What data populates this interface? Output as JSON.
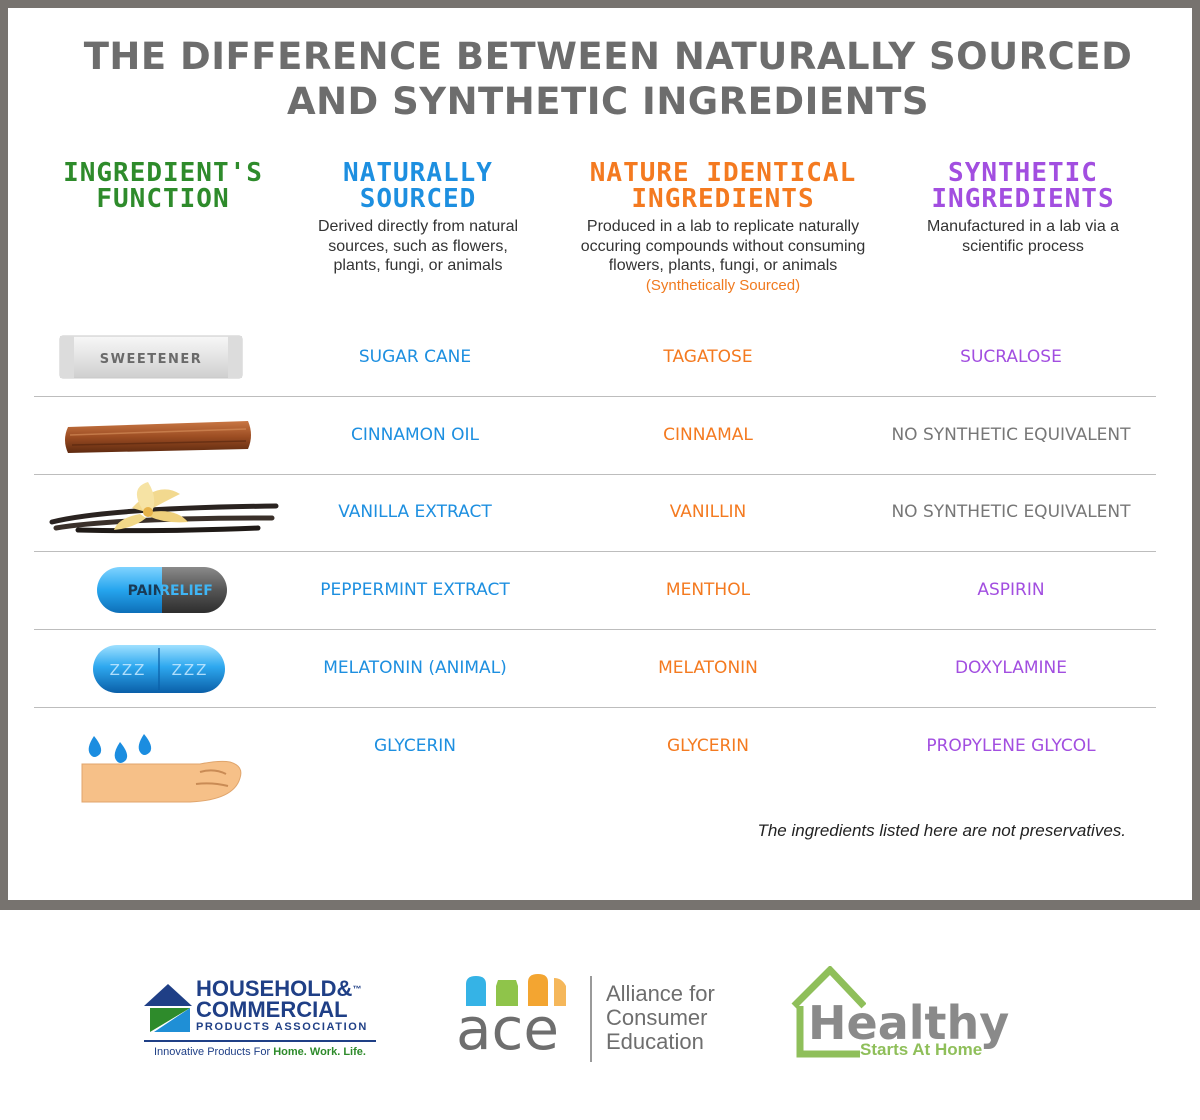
{
  "title": {
    "line1": "THE DIFFERENCE BETWEEN NATURALLY SOURCED",
    "line2": "AND SYNTHETIC INGREDIENTS"
  },
  "columns": {
    "function": {
      "line1": "INGREDIENT'S",
      "line2": "FUNCTION"
    },
    "natural": {
      "line1": "NATURALLY",
      "line2": "SOURCED",
      "desc": [
        "Derived directly from natural",
        "sources, such as flowers,",
        "plants, fungi, or animals"
      ]
    },
    "identical": {
      "line1": "NATURE IDENTICAL",
      "line2": "INGREDIENTS",
      "desc": [
        "Produced in a lab to replicate naturally",
        "occuring compounds without consuming",
        "flowers, plants, fungi, or animals"
      ],
      "note": "(Synthetically Sourced)"
    },
    "synthetic": {
      "line1": "SYNTHETIC",
      "line2": "INGREDIENTS",
      "desc": [
        "Manufactured in a lab via a",
        "scientific process"
      ]
    }
  },
  "rows": [
    {
      "icon": "sweetener-packet-icon",
      "icon_label": "SWEETENER",
      "natural": "SUGAR CANE",
      "identical": "TAGATOSE",
      "synthetic": "SUCRALOSE"
    },
    {
      "icon": "cinnamon-stick-icon",
      "natural": "CINNAMON OIL",
      "identical": "CINNAMAL",
      "synthetic": "NO SYNTHETIC EQUIVALENT"
    },
    {
      "icon": "vanilla-flower-icon",
      "natural": "VANILLA EXTRACT",
      "identical": "VANILLIN",
      "synthetic": "NO SYNTHETIC EQUIVALENT"
    },
    {
      "icon": "pain-relief-pill-icon",
      "icon_label_a": "PAIN",
      "icon_label_b": "RELIEF",
      "natural": "PEPPERMINT EXTRACT",
      "identical": "MENTHOL",
      "synthetic": "ASPIRIN"
    },
    {
      "icon": "sleep-pill-icon",
      "icon_label_a": "ZZZ",
      "icon_label_b": "ZZZ",
      "natural": "MELATONIN (ANIMAL)",
      "identical": "MELATONIN",
      "synthetic": "DOXYLAMINE"
    },
    {
      "icon": "hand-water-drops-icon",
      "natural": "GLYCERIN",
      "identical": "GLYCERIN",
      "synthetic": "PROPYLENE GLYCOL"
    }
  ],
  "footnote": "The ingredients listed here are not preservatives.",
  "logos": {
    "hcpa": {
      "line1": "HOUSEHOLD&",
      "line2": "COMMERCIAL",
      "line3": "PRODUCTS ASSOCIATION",
      "tm": "™",
      "tagline_a": "Innovative Products For ",
      "tagline_b": "Home. Work. Life."
    },
    "ace": {
      "word": "ace",
      "line1": "Alliance for",
      "line2": "Consumer",
      "line3": "Education"
    },
    "healthy": {
      "word": "Healthy",
      "tagline": "Starts At Home"
    }
  },
  "colors": {
    "function": "#2e8b2b",
    "natural": "#1d8fe0",
    "identical": "#f47a20",
    "synthetic": "#a24ee0",
    "no_equivalent": "#777777",
    "frame": "#77736f"
  }
}
